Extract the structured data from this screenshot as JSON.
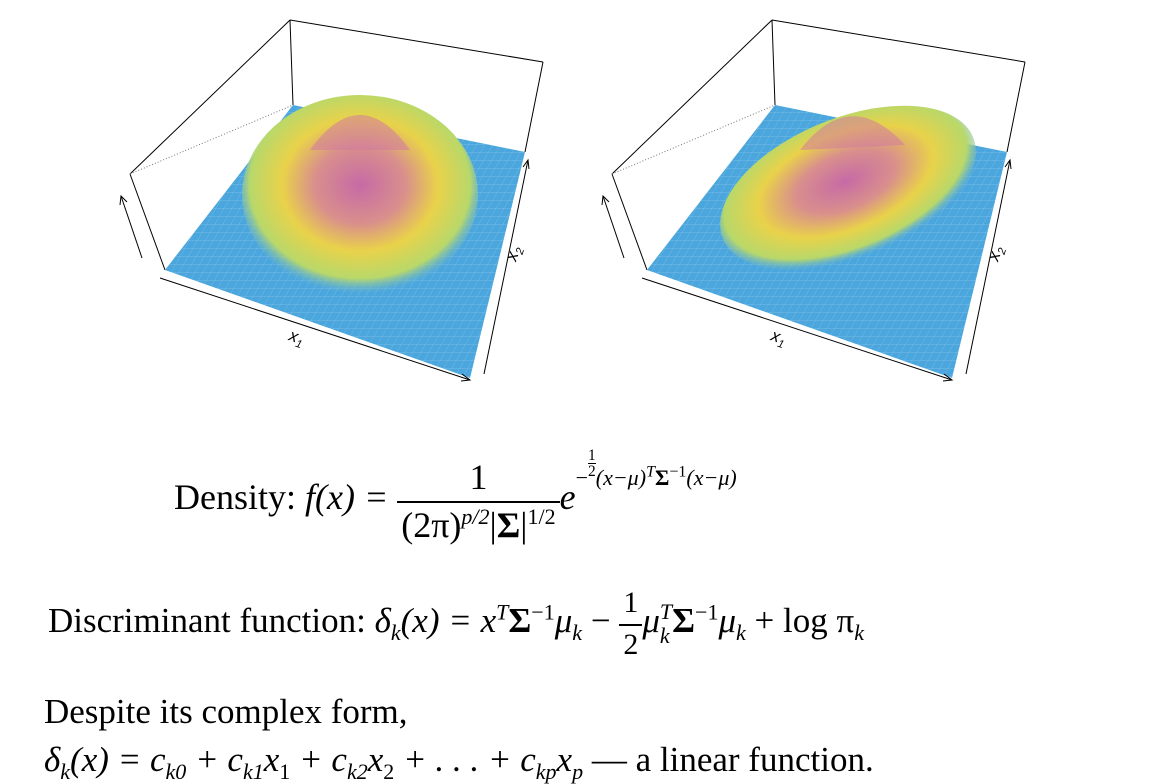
{
  "plots": [
    {
      "id": "left",
      "x1_label": "x",
      "x1_sub": "1",
      "x2_label": "x",
      "x2_sub": "2"
    },
    {
      "id": "right",
      "x1_label": "x",
      "x1_sub": "1",
      "x2_label": "x",
      "x2_sub": "2"
    }
  ],
  "density": {
    "prefix": "Density:",
    "lhs": "f(x) =",
    "numerator": "1",
    "two_pi": "(2π)",
    "exp_p2": "p/2",
    "sigma": "Σ",
    "exp_half": "1/2",
    "e": "e",
    "exp_minus": "−",
    "half_num": "1",
    "half_den": "2",
    "exp_rest": "(x−μ)",
    "exp_T": "T",
    "exp_sigma": "Σ",
    "exp_inv": "−1",
    "exp_tail": "(x−μ)"
  },
  "discriminant": {
    "prefix": "Discriminant function:",
    "lhs": "δ",
    "lhs_sub": "k",
    "lhs_arg": "(x) = x",
    "T": "T",
    "sigma": "Σ",
    "inv": "−1",
    "mu": "μ",
    "mu_sub": "k",
    "minus": " − ",
    "half_num": "1",
    "half_den": "2",
    "mu2": "μ",
    "mu2_sup": "T",
    "mu2_sub": "k",
    "sigma2": "Σ",
    "inv2": "−1",
    "mu3": "μ",
    "mu3_sub": "k",
    "plus_log": " + log π",
    "pi_sub": "k"
  },
  "note": {
    "line1": "Despite its complex form,",
    "delta": "δ",
    "delta_sub": "k",
    "eq_start": "(x) = c",
    "c0_sub": "k0",
    "plus1": " + c",
    "c1_sub": "k1",
    "x1": "x",
    "x1_sub": "1",
    "plus2": " + c",
    "c2_sub": "k2",
    "x2": "x",
    "x2_sub": "2",
    "dots": " + . . . + c",
    "cp_sub": "kp",
    "xp": "x",
    "xp_sub": "p",
    "tail": " — a linear function."
  }
}
